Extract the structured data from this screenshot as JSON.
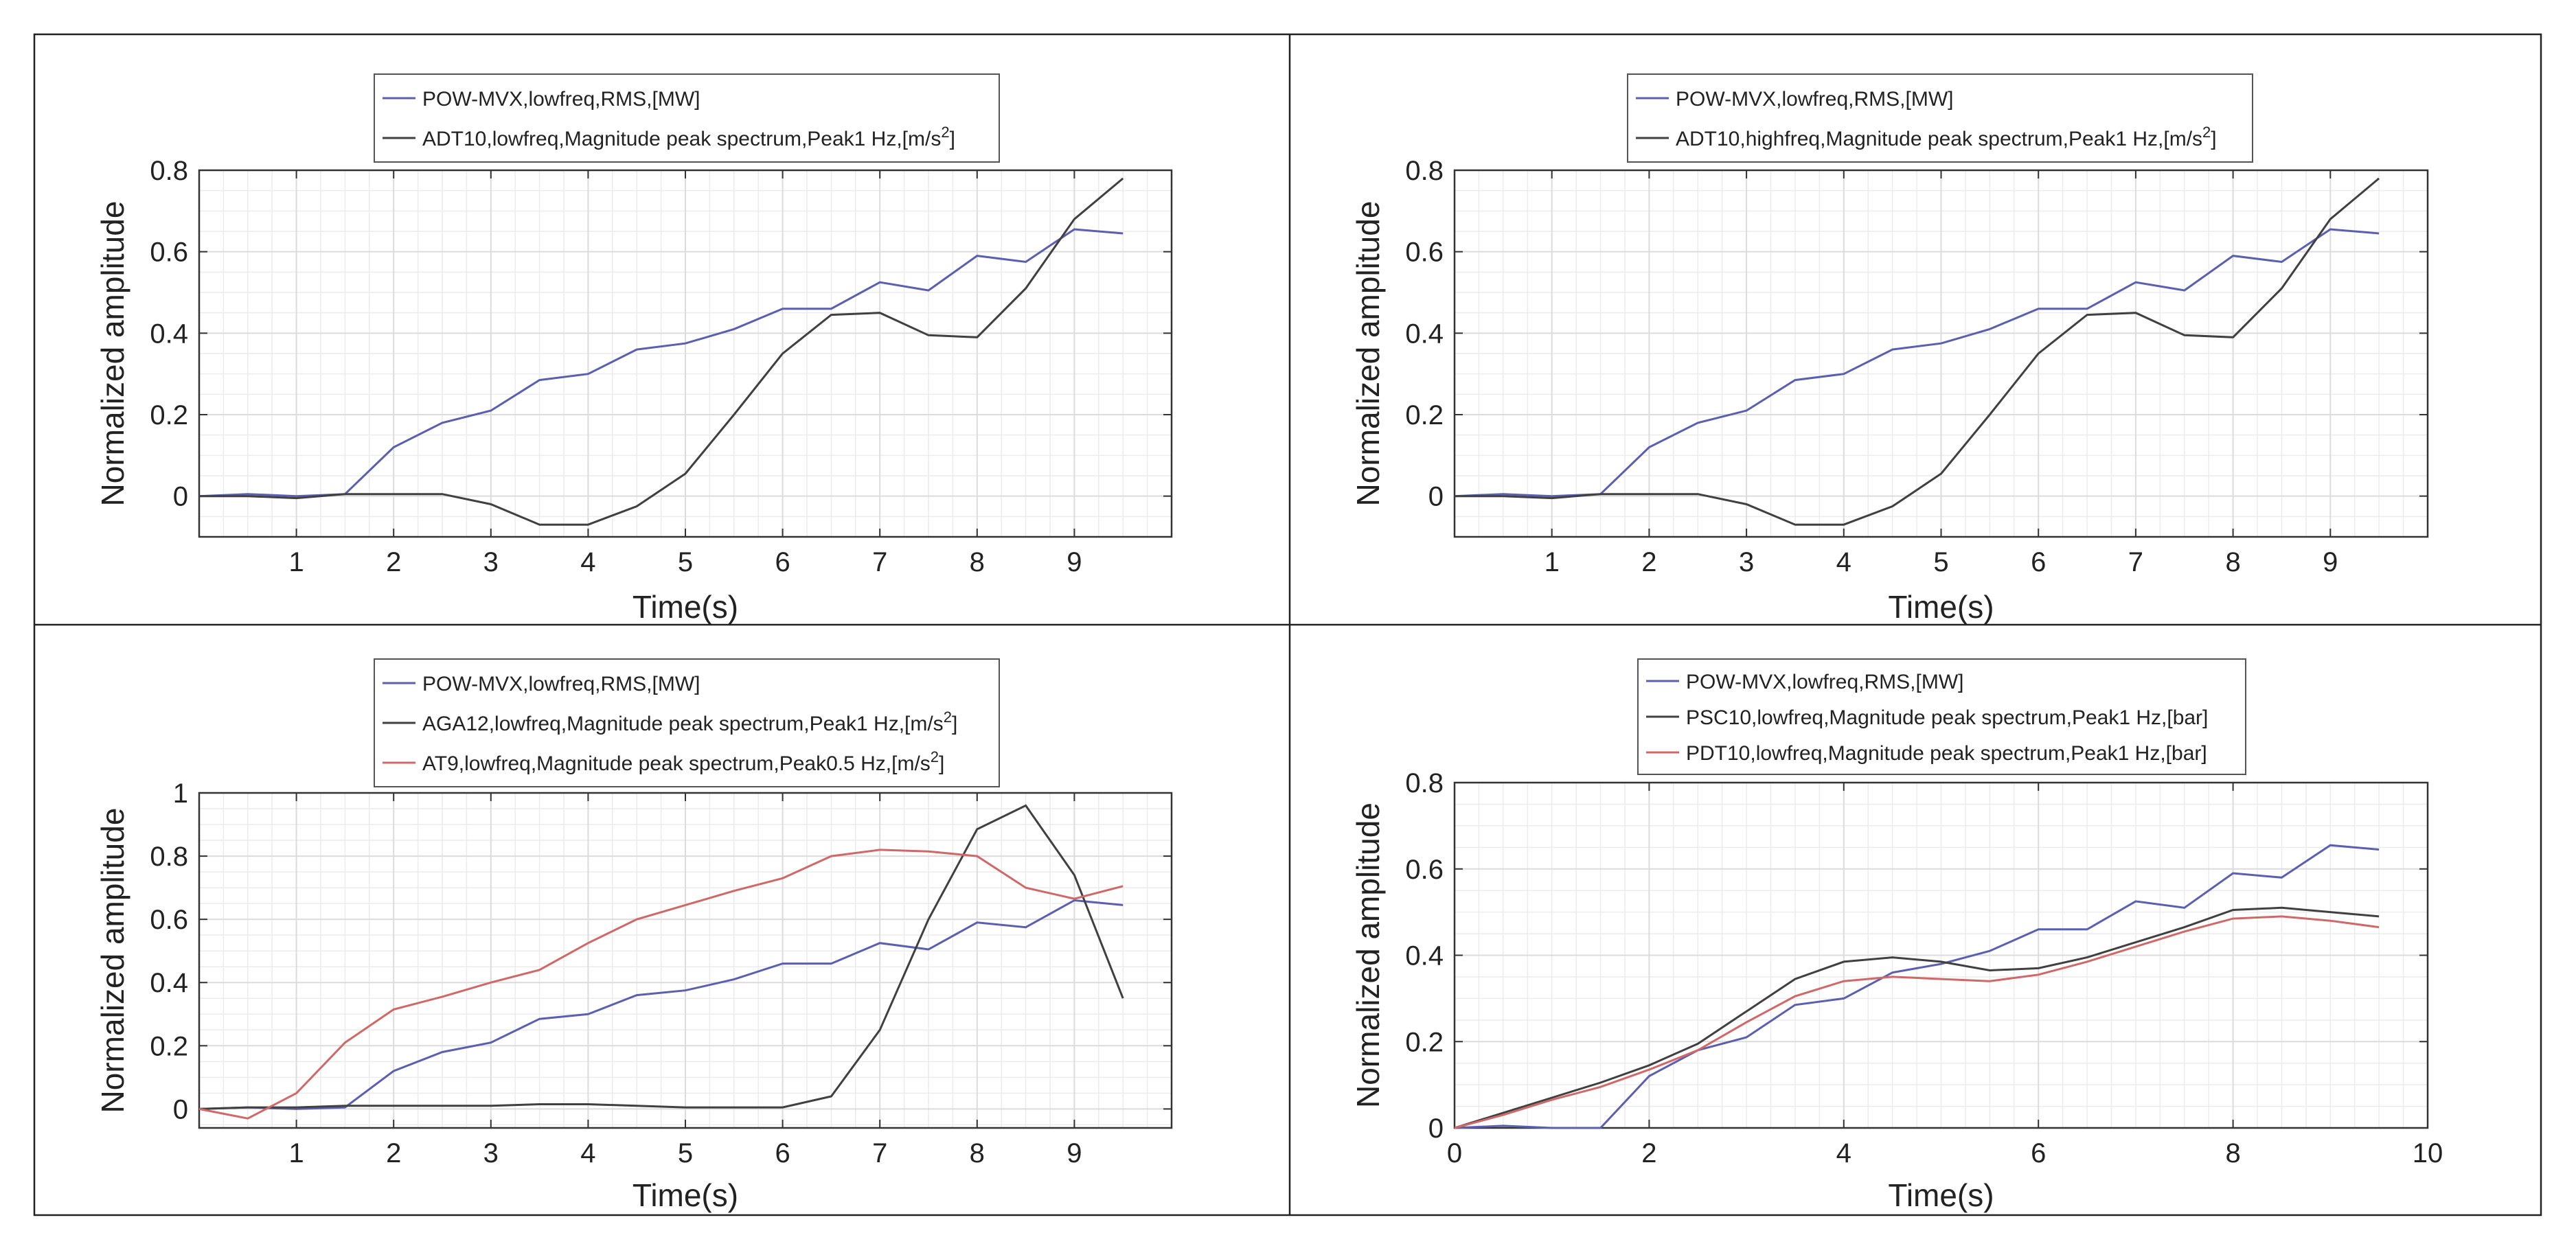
{
  "chart_data": [
    {
      "type": "line",
      "xlabel": "Time(s)",
      "ylabel": "Normalized amplitude",
      "xlim": [
        0,
        10
      ],
      "ylim": [
        -0.1,
        0.8
      ],
      "xticks": [
        1,
        2,
        3,
        4,
        5,
        6,
        7,
        8,
        9
      ],
      "xtick_labels": [
        "1",
        "2",
        "3",
        "4",
        "5",
        "6",
        "7",
        "8",
        "9"
      ],
      "yticks": [
        0,
        0.2,
        0.4,
        0.6,
        0.8
      ],
      "ytick_labels": [
        "0",
        "0.2",
        "0.4",
        "0.6",
        "0.8"
      ],
      "grid": true,
      "legend_position": "top-center",
      "x": [
        0,
        0.5,
        1,
        1.5,
        2,
        2.5,
        3,
        3.5,
        4,
        4.5,
        5,
        5.5,
        6,
        6.5,
        7,
        7.5,
        8,
        8.5,
        9,
        9.5
      ],
      "series": [
        {
          "name": "POW-MVX,lowfreq,RMS,[MW]",
          "legend_main": "POW-MVX,lowfreq,RMS,[MW]",
          "legend_sup": "",
          "legend_tail": "",
          "color": "#5b5fb0",
          "values": [
            0,
            0.005,
            0,
            0.005,
            0.12,
            0.18,
            0.21,
            0.285,
            0.3,
            0.36,
            0.375,
            0.41,
            0.46,
            0.46,
            0.525,
            0.505,
            0.59,
            0.575,
            0.655,
            0.645
          ]
        },
        {
          "name": "ADT10,lowfreq,Magnitude peak spectrum,Peak1 Hz,[m/s2]",
          "legend_main": "ADT10,lowfreq,Magnitude peak spectrum,Peak1 Hz,[m/s",
          "legend_sup": "2",
          "legend_tail": "]",
          "color": "#404040",
          "values": [
            0,
            0,
            -0.005,
            0.005,
            0.005,
            0.005,
            -0.02,
            -0.07,
            -0.07,
            -0.025,
            0.055,
            0.2,
            0.35,
            0.445,
            0.45,
            0.395,
            0.39,
            0.51,
            0.68,
            0.78
          ]
        }
      ]
    },
    {
      "type": "line",
      "xlabel": "Time(s)",
      "ylabel": "Normalized amplitude",
      "xlim": [
        0,
        10
      ],
      "ylim": [
        -0.1,
        0.8
      ],
      "xticks": [
        1,
        2,
        3,
        4,
        5,
        6,
        7,
        8,
        9
      ],
      "xtick_labels": [
        "1",
        "2",
        "3",
        "4",
        "5",
        "6",
        "7",
        "8",
        "9"
      ],
      "yticks": [
        0,
        0.2,
        0.4,
        0.6,
        0.8
      ],
      "ytick_labels": [
        "0",
        "0.2",
        "0.4",
        "0.6",
        "0.8"
      ],
      "grid": true,
      "legend_position": "top-center",
      "x": [
        0,
        0.5,
        1,
        1.5,
        2,
        2.5,
        3,
        3.5,
        4,
        4.5,
        5,
        5.5,
        6,
        6.5,
        7,
        7.5,
        8,
        8.5,
        9,
        9.5
      ],
      "series": [
        {
          "name": "POW-MVX,lowfreq,RMS,[MW]",
          "legend_main": "POW-MVX,lowfreq,RMS,[MW]",
          "legend_sup": "",
          "legend_tail": "",
          "color": "#5b5fb0",
          "values": [
            0,
            0.005,
            0,
            0.005,
            0.12,
            0.18,
            0.21,
            0.285,
            0.3,
            0.36,
            0.375,
            0.41,
            0.46,
            0.46,
            0.525,
            0.505,
            0.59,
            0.575,
            0.655,
            0.645
          ]
        },
        {
          "name": "ADT10,highfreq,Magnitude peak spectrum,Peak1 Hz,[m/s2]",
          "legend_main": "ADT10,highfreq,Magnitude peak spectrum,Peak1 Hz,[m/s",
          "legend_sup": "2",
          "legend_tail": "]",
          "color": "#404040",
          "values": [
            0,
            0,
            -0.005,
            0.005,
            0.005,
            0.005,
            -0.02,
            -0.07,
            -0.07,
            -0.025,
            0.055,
            0.2,
            0.35,
            0.445,
            0.45,
            0.395,
            0.39,
            0.51,
            0.68,
            0.78
          ]
        }
      ]
    },
    {
      "type": "line",
      "xlabel": "Time(s)",
      "ylabel": "Normalized amplitude",
      "xlim": [
        0,
        10
      ],
      "ylim": [
        -0.06,
        1
      ],
      "xticks": [
        1,
        2,
        3,
        4,
        5,
        6,
        7,
        8,
        9
      ],
      "xtick_labels": [
        "1",
        "2",
        "3",
        "4",
        "5",
        "6",
        "7",
        "8",
        "9"
      ],
      "yticks": [
        0,
        0.2,
        0.4,
        0.6,
        0.8,
        1
      ],
      "ytick_labels": [
        "0",
        "0.2",
        "0.4",
        "0.6",
        "0.8",
        "1"
      ],
      "grid": true,
      "legend_position": "top-center",
      "x": [
        0,
        0.5,
        1,
        1.5,
        2,
        2.5,
        3,
        3.5,
        4,
        4.5,
        5,
        5.5,
        6,
        6.5,
        7,
        7.5,
        8,
        8.5,
        9,
        9.5
      ],
      "series": [
        {
          "name": "POW-MVX,lowfreq,RMS,[MW]",
          "legend_main": "POW-MVX,lowfreq,RMS,[MW]",
          "legend_sup": "",
          "legend_tail": "",
          "color": "#5b5fb0",
          "values": [
            0,
            0.005,
            0,
            0.005,
            0.12,
            0.18,
            0.21,
            0.285,
            0.3,
            0.36,
            0.375,
            0.41,
            0.46,
            0.46,
            0.525,
            0.505,
            0.59,
            0.575,
            0.66,
            0.645
          ]
        },
        {
          "name": "AGA12,lowfreq,Magnitude peak spectrum,Peak1 Hz,[m/s2]",
          "legend_main": "AGA12,lowfreq,Magnitude peak spectrum,Peak1 Hz,[m/s",
          "legend_sup": "2",
          "legend_tail": "]",
          "color": "#404040",
          "values": [
            0,
            0.005,
            0.005,
            0.01,
            0.01,
            0.01,
            0.01,
            0.015,
            0.015,
            0.01,
            0.005,
            0.005,
            0.005,
            0.04,
            0.25,
            0.6,
            0.885,
            0.96,
            0.74,
            0.35
          ]
        },
        {
          "name": "AT9,lowfreq,Magnitude peak spectrum,Peak0.5 Hz,[m/s2]",
          "legend_main": "AT9,lowfreq,Magnitude peak spectrum,Peak0.5 Hz,[m/s",
          "legend_sup": "2",
          "legend_tail": "]",
          "color": "#d06868",
          "values": [
            0,
            -0.03,
            0.05,
            0.21,
            0.315,
            0.355,
            0.4,
            0.44,
            0.525,
            0.6,
            0.645,
            0.69,
            0.73,
            0.8,
            0.82,
            0.815,
            0.8,
            0.7,
            0.665,
            0.705
          ]
        }
      ]
    },
    {
      "type": "line",
      "xlabel": "Time(s)",
      "ylabel": "Normalized amplitude",
      "xlim": [
        0,
        10
      ],
      "ylim": [
        0,
        0.8
      ],
      "xticks": [
        0,
        2,
        4,
        6,
        8,
        10
      ],
      "xtick_labels": [
        "0",
        "2",
        "4",
        "6",
        "8",
        "10"
      ],
      "yticks": [
        0,
        0.2,
        0.4,
        0.6,
        0.8
      ],
      "ytick_labels": [
        "0",
        "0.2",
        "0.4",
        "0.6",
        "0.8"
      ],
      "grid": true,
      "legend_position": "top-center",
      "x": [
        0,
        0.5,
        1,
        1.5,
        2,
        2.5,
        3,
        3.5,
        4,
        4.5,
        5,
        5.5,
        6,
        6.5,
        7,
        7.5,
        8,
        8.5,
        9,
        9.5
      ],
      "series": [
        {
          "name": "POW-MVX,lowfreq,RMS,[MW]",
          "legend_main": "POW-MVX,lowfreq,RMS,[MW]",
          "legend_sup": "",
          "legend_tail": "",
          "color": "#5b5fb0",
          "values": [
            0,
            0.005,
            0,
            0,
            0.12,
            0.18,
            0.21,
            0.285,
            0.3,
            0.36,
            0.38,
            0.41,
            0.46,
            0.46,
            0.525,
            0.51,
            0.59,
            0.58,
            0.655,
            0.645
          ]
        },
        {
          "name": "PSC10,lowfreq,Magnitude peak spectrum,Peak1 Hz,[bar]",
          "legend_main": "PSC10,lowfreq,Magnitude peak spectrum,Peak1 Hz,[bar]",
          "legend_sup": "",
          "legend_tail": "",
          "color": "#404040",
          "values": [
            0,
            0.035,
            0.07,
            0.105,
            0.145,
            0.195,
            0.27,
            0.345,
            0.385,
            0.395,
            0.385,
            0.365,
            0.37,
            0.395,
            0.43,
            0.465,
            0.505,
            0.51,
            0.5,
            0.49
          ]
        },
        {
          "name": "PDT10,lowfreq,Magnitude peak spectrum,Peak1 Hz,[bar]",
          "legend_main": "PDT10,lowfreq,Magnitude peak spectrum,Peak1 Hz,[bar]",
          "legend_sup": "",
          "legend_tail": "",
          "color": "#d06868",
          "values": [
            0,
            0.03,
            0.065,
            0.095,
            0.135,
            0.18,
            0.245,
            0.305,
            0.34,
            0.35,
            0.345,
            0.34,
            0.355,
            0.385,
            0.42,
            0.455,
            0.485,
            0.49,
            0.48,
            0.465
          ]
        }
      ]
    }
  ]
}
